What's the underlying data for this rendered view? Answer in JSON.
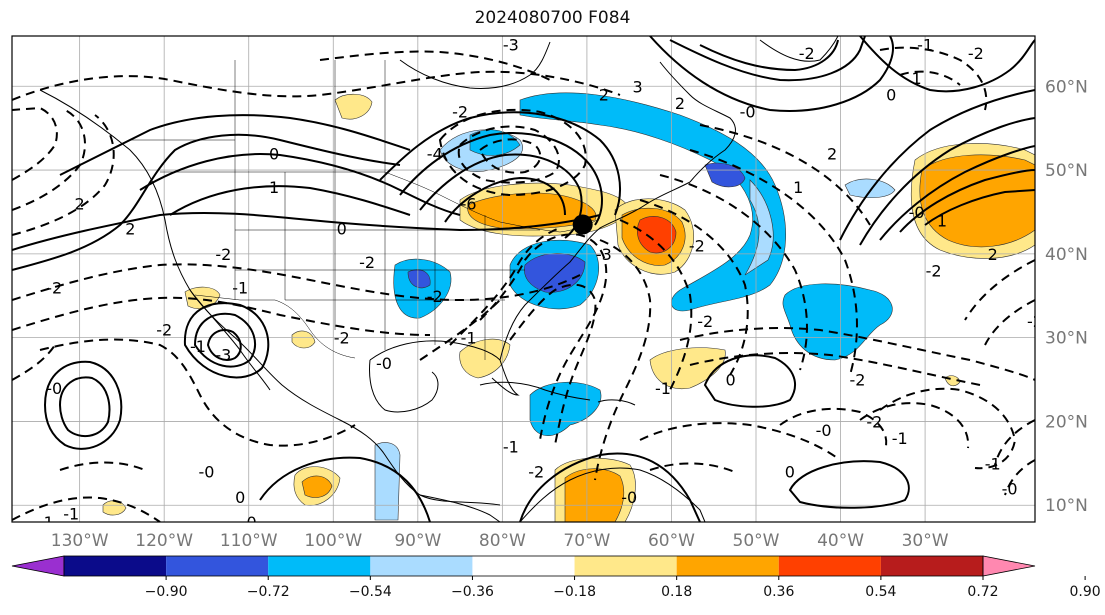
{
  "title": "2024080700 F084",
  "map": {
    "projection": "PlateCarree",
    "lon_range": [
      -138,
      -17
    ],
    "lat_range": [
      8,
      66
    ],
    "gridlines": true,
    "marker": {
      "lon": -70.5,
      "lat": 43.5,
      "color": "#000000"
    },
    "lon_ticks": [
      {
        "value": -130,
        "label": "130°W"
      },
      {
        "value": -120,
        "label": "120°W"
      },
      {
        "value": -110,
        "label": "110°W"
      },
      {
        "value": -100,
        "label": "100°W"
      },
      {
        "value": -90,
        "label": "90°W"
      },
      {
        "value": -80,
        "label": "80°W"
      },
      {
        "value": -70,
        "label": "70°W"
      },
      {
        "value": -60,
        "label": "60°W"
      },
      {
        "value": -50,
        "label": "50°W"
      },
      {
        "value": -40,
        "label": "40°W"
      },
      {
        "value": -30,
        "label": "30°W"
      }
    ],
    "lat_ticks": [
      {
        "value": 60,
        "label": "60°N"
      },
      {
        "value": 50,
        "label": "50°N"
      },
      {
        "value": 40,
        "label": "40°N"
      },
      {
        "value": 30,
        "label": "30°N"
      },
      {
        "value": 20,
        "label": "20°N"
      },
      {
        "value": 10,
        "label": "10°N"
      }
    ],
    "contour_labels": [
      {
        "text": "0",
        "lon": -99,
        "lat": 43
      },
      {
        "text": "1",
        "lon": -107,
        "lat": 48
      },
      {
        "text": "0",
        "lon": -107,
        "lat": 52
      },
      {
        "text": "2",
        "lon": -124,
        "lat": 43
      },
      {
        "text": "2",
        "lon": -130,
        "lat": 46
      },
      {
        "text": "-2",
        "lon": -133,
        "lat": 36
      },
      {
        "text": "-2",
        "lon": -120,
        "lat": 31
      },
      {
        "text": "-3",
        "lon": -113,
        "lat": 28
      },
      {
        "text": "-1",
        "lon": -116,
        "lat": 29
      },
      {
        "text": "-0",
        "lon": -133,
        "lat": 24
      },
      {
        "text": "-2",
        "lon": -96,
        "lat": 39
      },
      {
        "text": "-4",
        "lon": -88,
        "lat": 52
      },
      {
        "text": "-6",
        "lon": -84,
        "lat": 46
      },
      {
        "text": "-2",
        "lon": -85,
        "lat": 57
      },
      {
        "text": "-3",
        "lon": -79,
        "lat": 65
      },
      {
        "text": "2",
        "lon": -68,
        "lat": 59
      },
      {
        "text": "3",
        "lon": -64,
        "lat": 60
      },
      {
        "text": "2",
        "lon": -59,
        "lat": 58
      },
      {
        "text": "-0",
        "lon": -51,
        "lat": 57
      },
      {
        "text": "1",
        "lon": -45,
        "lat": 48
      },
      {
        "text": "2",
        "lon": -41,
        "lat": 52
      },
      {
        "text": "-2",
        "lon": -44,
        "lat": 64
      },
      {
        "text": "0",
        "lon": -34,
        "lat": 59
      },
      {
        "text": "1",
        "lon": -31,
        "lat": 61
      },
      {
        "text": "-2",
        "lon": -24,
        "lat": 64
      },
      {
        "text": "-1",
        "lon": -30,
        "lat": 65
      },
      {
        "text": "-0",
        "lon": -31,
        "lat": 45
      },
      {
        "text": "1",
        "lon": -28,
        "lat": 44
      },
      {
        "text": "2",
        "lon": -22,
        "lat": 40
      },
      {
        "text": "-2",
        "lon": -29,
        "lat": 38
      },
      {
        "text": "-1",
        "lon": -84,
        "lat": 30
      },
      {
        "text": "-2",
        "lon": -88,
        "lat": 35
      },
      {
        "text": "-0",
        "lon": -94,
        "lat": 27
      },
      {
        "text": "-2",
        "lon": -57,
        "lat": 41
      },
      {
        "text": "-3",
        "lon": -68,
        "lat": 40
      },
      {
        "text": "-2",
        "lon": -56,
        "lat": 32
      },
      {
        "text": "-1",
        "lon": -61,
        "lat": 24
      },
      {
        "text": "0",
        "lon": -53,
        "lat": 25
      },
      {
        "text": "-2",
        "lon": -38,
        "lat": 25
      },
      {
        "text": "-2",
        "lon": -36,
        "lat": 20
      },
      {
        "text": "-1",
        "lon": -33,
        "lat": 18
      },
      {
        "text": "-0",
        "lon": -42,
        "lat": 19
      },
      {
        "text": "0",
        "lon": -46,
        "lat": 14
      },
      {
        "text": "-1",
        "lon": -22,
        "lat": 15
      },
      {
        "text": "-0",
        "lon": -20,
        "lat": 12
      },
      {
        "text": "-0",
        "lon": -65,
        "lat": 11
      },
      {
        "text": "0",
        "lon": -111,
        "lat": 11
      },
      {
        "text": "-0",
        "lon": -115,
        "lat": 14
      },
      {
        "text": "-1",
        "lon": -134,
        "lat": 8
      },
      {
        "text": "-1",
        "lon": -131,
        "lat": 9
      },
      {
        "text": "-0",
        "lon": -110,
        "lat": 8
      },
      {
        "text": "-2",
        "lon": -17,
        "lat": 32
      },
      {
        "text": "-2",
        "lon": -113,
        "lat": 40
      },
      {
        "text": "-1",
        "lon": -111,
        "lat": 36
      },
      {
        "text": "-2",
        "lon": -99,
        "lat": 30
      },
      {
        "text": "-1",
        "lon": -79,
        "lat": 17
      },
      {
        "text": "-2",
        "lon": -76,
        "lat": 14
      }
    ]
  },
  "colorbar": {
    "colors": [
      "#9a2fd0",
      "#0b0b8a",
      "#3355dd",
      "#00bbf9",
      "#aadcff",
      "#ffffff",
      "#ffe88a",
      "#ffa500",
      "#ff4000",
      "#b71c1c",
      "#ff88b0"
    ],
    "tick_labels": [
      "−0.90",
      "−0.72",
      "−0.54",
      "−0.36",
      "−0.18",
      "0.18",
      "0.36",
      "0.54",
      "0.72",
      "0.90"
    ],
    "extend": "both"
  }
}
